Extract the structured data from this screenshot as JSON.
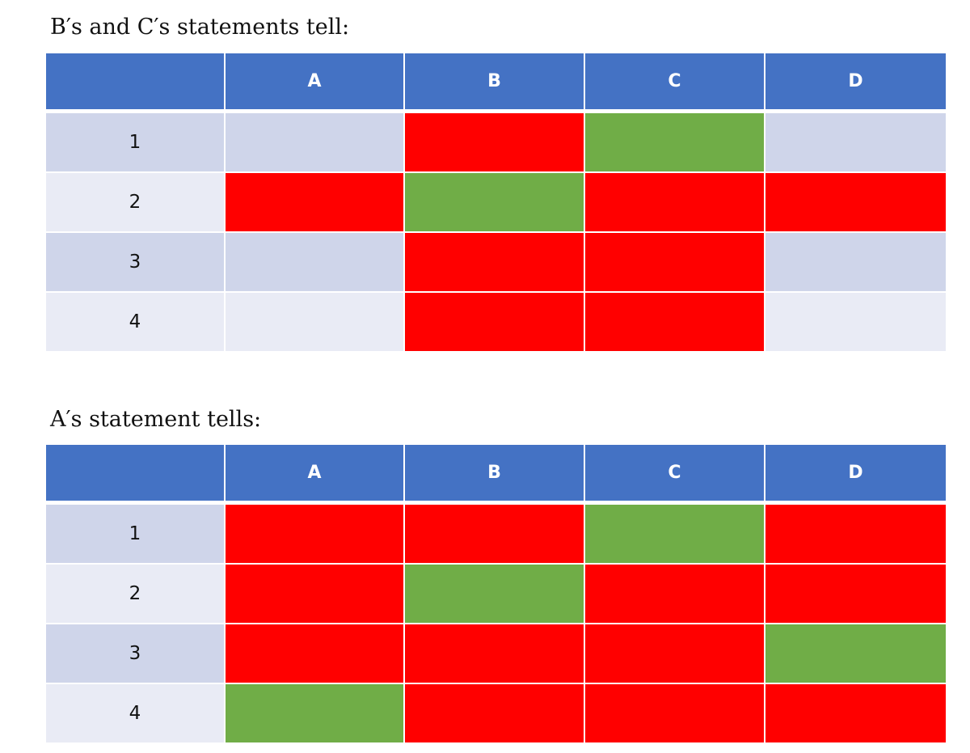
{
  "colors": {
    "header": "#4472c4",
    "band_odd": "#cfd5ea",
    "band_even": "#e9ebf5",
    "red": "#ff0000",
    "green": "#70ad47"
  },
  "tables": [
    {
      "caption": "B′s and C′s statements tell:",
      "columns": [
        "A",
        "B",
        "C",
        "D"
      ],
      "rows": [
        {
          "label": "1",
          "cells": [
            "none",
            "red",
            "green",
            "none"
          ]
        },
        {
          "label": "2",
          "cells": [
            "red",
            "green",
            "red",
            "red"
          ]
        },
        {
          "label": "3",
          "cells": [
            "none",
            "red",
            "red",
            "none"
          ]
        },
        {
          "label": "4",
          "cells": [
            "none",
            "red",
            "red",
            "none"
          ]
        }
      ]
    },
    {
      "caption": "A′s statement tells:",
      "columns": [
        "A",
        "B",
        "C",
        "D"
      ],
      "rows": [
        {
          "label": "1",
          "cells": [
            "red",
            "red",
            "green",
            "red"
          ]
        },
        {
          "label": "2",
          "cells": [
            "red",
            "green",
            "red",
            "red"
          ]
        },
        {
          "label": "3",
          "cells": [
            "red",
            "red",
            "red",
            "green"
          ]
        },
        {
          "label": "4",
          "cells": [
            "green",
            "red",
            "red",
            "red"
          ]
        }
      ]
    }
  ]
}
